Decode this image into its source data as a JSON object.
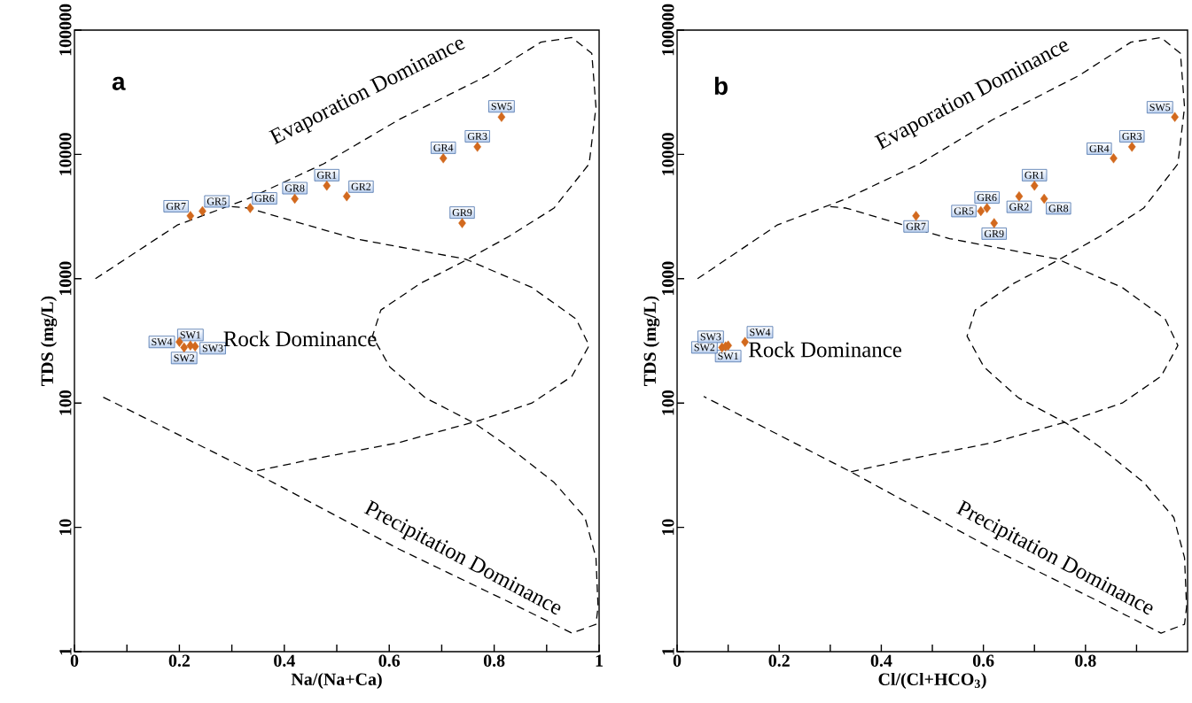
{
  "chart_data": [
    {
      "type": "scatter",
      "title": "a",
      "xlabel": "Na/(Na+Ca)",
      "ylabel": "TDS (mg/L)",
      "xlim": [
        0,
        1
      ],
      "ylim": [
        1,
        100000
      ],
      "log": "y",
      "marker": "diamond",
      "xticks": [
        0,
        {
          "value": 0.1,
          "label": null
        },
        0.2,
        {
          "value": 0.3,
          "label": null
        },
        0.4,
        {
          "value": 0.5,
          "label": null
        },
        0.6,
        {
          "value": 0.7,
          "label": null
        },
        0.8,
        {
          "value": 0.9,
          "label": null
        },
        1
      ],
      "yticks": [
        1,
        10,
        100,
        1000,
        10000,
        100000
      ],
      "series": [
        {
          "type": "scatter",
          "color": "#d2691e",
          "x": [
            0.481,
            0.519,
            0.768,
            0.703,
            0.244,
            0.335,
            0.221,
            0.42,
            0.739,
            0.221,
            0.209,
            0.23,
            0.2,
            0.814
          ],
          "values": [
            5600,
            4600,
            11500,
            9300,
            3500,
            3700,
            3200,
            4400,
            2800,
            290,
            280,
            285,
            310,
            20000
          ]
        },
        {
          "type": "line",
          "color": "#000000",
          "line_style": "dashed",
          "marker": "none",
          "x": [
            0.04,
            0.196,
            0.331,
            0.475,
            0.618,
            0.787,
            0.889,
            0.948,
            0.986,
            0.994,
            0.981,
            0.948,
            0.914,
            0.829,
            0.745,
            0.66,
            0.584,
            0.568,
            0.601,
            0.669,
            0.762,
            0.829,
            0.914,
            0.973,
            0.994,
            0.998,
            0.994,
            0.948,
            0.829,
            0.618,
            0.34,
            0.052
          ],
          "values": [
            1000,
            2700,
            4400,
            8400,
            19000,
            43000,
            80000,
            87000,
            65000,
            24000,
            8400,
            5600,
            3700,
            2200,
            1400,
            920,
            560,
            345,
            195,
            110,
            69,
            44,
            23,
            12,
            5.7,
            2.3,
            1.66,
            1.41,
            2.5,
            6.7,
            28,
            113
          ]
        },
        {
          "type": "line",
          "color": "#000000",
          "line_style": "dashed",
          "marker": "none",
          "x": [
            0.3,
            0.331,
            0.534,
            0.745,
            0.872,
            0.956,
            0.981,
            0.948,
            0.872,
            0.77,
            0.618,
            0.449,
            0.34
          ],
          "values": [
            3800,
            3700,
            2100,
            1440,
            850,
            475,
            290,
            164,
            100,
            72,
            48,
            35,
            28
          ]
        }
      ],
      "annotations": [
        {
          "text": "GR1",
          "x": 0.481,
          "y": 5600
        },
        {
          "text": "GR2",
          "x": 0.519,
          "y": 4600
        },
        {
          "text": "GR3",
          "x": 0.768,
          "y": 11500
        },
        {
          "text": "GR4",
          "x": 0.703,
          "y": 9300
        },
        {
          "text": "GR5",
          "x": 0.244,
          "y": 3500
        },
        {
          "text": "GR6",
          "x": 0.335,
          "y": 3700
        },
        {
          "text": "GR7",
          "x": 0.221,
          "y": 3200
        },
        {
          "text": "GR8",
          "x": 0.42,
          "y": 4400
        },
        {
          "text": "GR9",
          "x": 0.739,
          "y": 2800
        },
        {
          "text": "SW1",
          "x": 0.221,
          "y": 290
        },
        {
          "text": "SW2",
          "x": 0.209,
          "y": 280
        },
        {
          "text": "SW3",
          "x": 0.23,
          "y": 285
        },
        {
          "text": "SW4",
          "x": 0.2,
          "y": 310
        },
        {
          "text": "SW5",
          "x": 0.814,
          "y": 20000
        },
        "Evaporation Dominance",
        "Rock Dominance",
        "Precipitation Dominance"
      ]
    },
    {
      "type": "scatter",
      "title": "b",
      "xlabel": "Cl/(Cl+HCO$_{3}$)",
      "ylabel": "TDS (mg/L)",
      "xlim": [
        0,
        1
      ],
      "ylim": [
        1,
        100000
      ],
      "log": "y",
      "marker": "diamond",
      "xticks": [
        0,
        {
          "value": 0.1,
          "label": null
        },
        0.2,
        {
          "value": 0.3,
          "label": null
        },
        0.4,
        {
          "value": 0.5,
          "label": null
        },
        0.6,
        {
          "value": 0.7,
          "label": null
        },
        0.8,
        {
          "value": 0.9,
          "label": null
        }
      ],
      "yticks": [
        1,
        10,
        100,
        1000,
        10000,
        100000
      ],
      "series": [
        {
          "type": "scatter",
          "color": "#d2691e",
          "x": [
            0.7,
            0.67,
            0.891,
            0.855,
            0.595,
            0.607,
            0.468,
            0.719,
            0.621,
            0.1,
            0.088,
            0.095,
            0.133,
            0.975
          ],
          "values": [
            5600,
            4600,
            11500,
            9300,
            3500,
            3700,
            3200,
            4400,
            2800,
            290,
            280,
            285,
            310,
            20000
          ]
        },
        {
          "type": "line",
          "color": "#000000",
          "line_style": "dashed",
          "marker": "none",
          "x": [
            0.04,
            0.196,
            0.331,
            0.475,
            0.618,
            0.787,
            0.889,
            0.948,
            0.986,
            0.994,
            0.981,
            0.948,
            0.914,
            0.829,
            0.745,
            0.66,
            0.584,
            0.568,
            0.601,
            0.669,
            0.762,
            0.829,
            0.914,
            0.973,
            0.994,
            0.998,
            0.994,
            0.948,
            0.829,
            0.618,
            0.34,
            0.052
          ],
          "values": [
            1000,
            2700,
            4400,
            8400,
            19000,
            43000,
            80000,
            87000,
            65000,
            24000,
            8400,
            5600,
            3700,
            2200,
            1400,
            920,
            560,
            345,
            195,
            110,
            69,
            44,
            23,
            12,
            5.7,
            2.3,
            1.66,
            1.41,
            2.5,
            6.7,
            28,
            113
          ]
        },
        {
          "type": "line",
          "color": "#000000",
          "line_style": "dashed",
          "marker": "none",
          "x": [
            0.3,
            0.331,
            0.534,
            0.745,
            0.872,
            0.956,
            0.981,
            0.948,
            0.872,
            0.77,
            0.618,
            0.449,
            0.34
          ],
          "values": [
            3800,
            3700,
            2100,
            1440,
            850,
            475,
            290,
            164,
            100,
            72,
            48,
            35,
            28
          ]
        }
      ],
      "annotations": [
        {
          "text": "GR1",
          "x": 0.7,
          "y": 5600
        },
        {
          "text": "GR2",
          "x": 0.67,
          "y": 4600
        },
        {
          "text": "GR3",
          "x": 0.891,
          "y": 11500
        },
        {
          "text": "GR4",
          "x": 0.855,
          "y": 9300
        },
        {
          "text": "GR5",
          "x": 0.595,
          "y": 3500
        },
        {
          "text": "GR6",
          "x": 0.607,
          "y": 3700
        },
        {
          "text": "GR7",
          "x": 0.468,
          "y": 3200
        },
        {
          "text": "GR8",
          "x": 0.719,
          "y": 4400
        },
        {
          "text": "GR9",
          "x": 0.621,
          "y": 2800
        },
        {
          "text": "SW1",
          "x": 0.1,
          "y": 290
        },
        {
          "text": "SW2",
          "x": 0.088,
          "y": 280
        },
        {
          "text": "SW3",
          "x": 0.095,
          "y": 285
        },
        {
          "text": "SW4",
          "x": 0.133,
          "y": 310
        },
        {
          "text": "SW5",
          "x": 0.975,
          "y": 20000
        },
        "Evaporation Dominance",
        "Rock Dominance",
        "Precipitation Dominance"
      ]
    }
  ]
}
